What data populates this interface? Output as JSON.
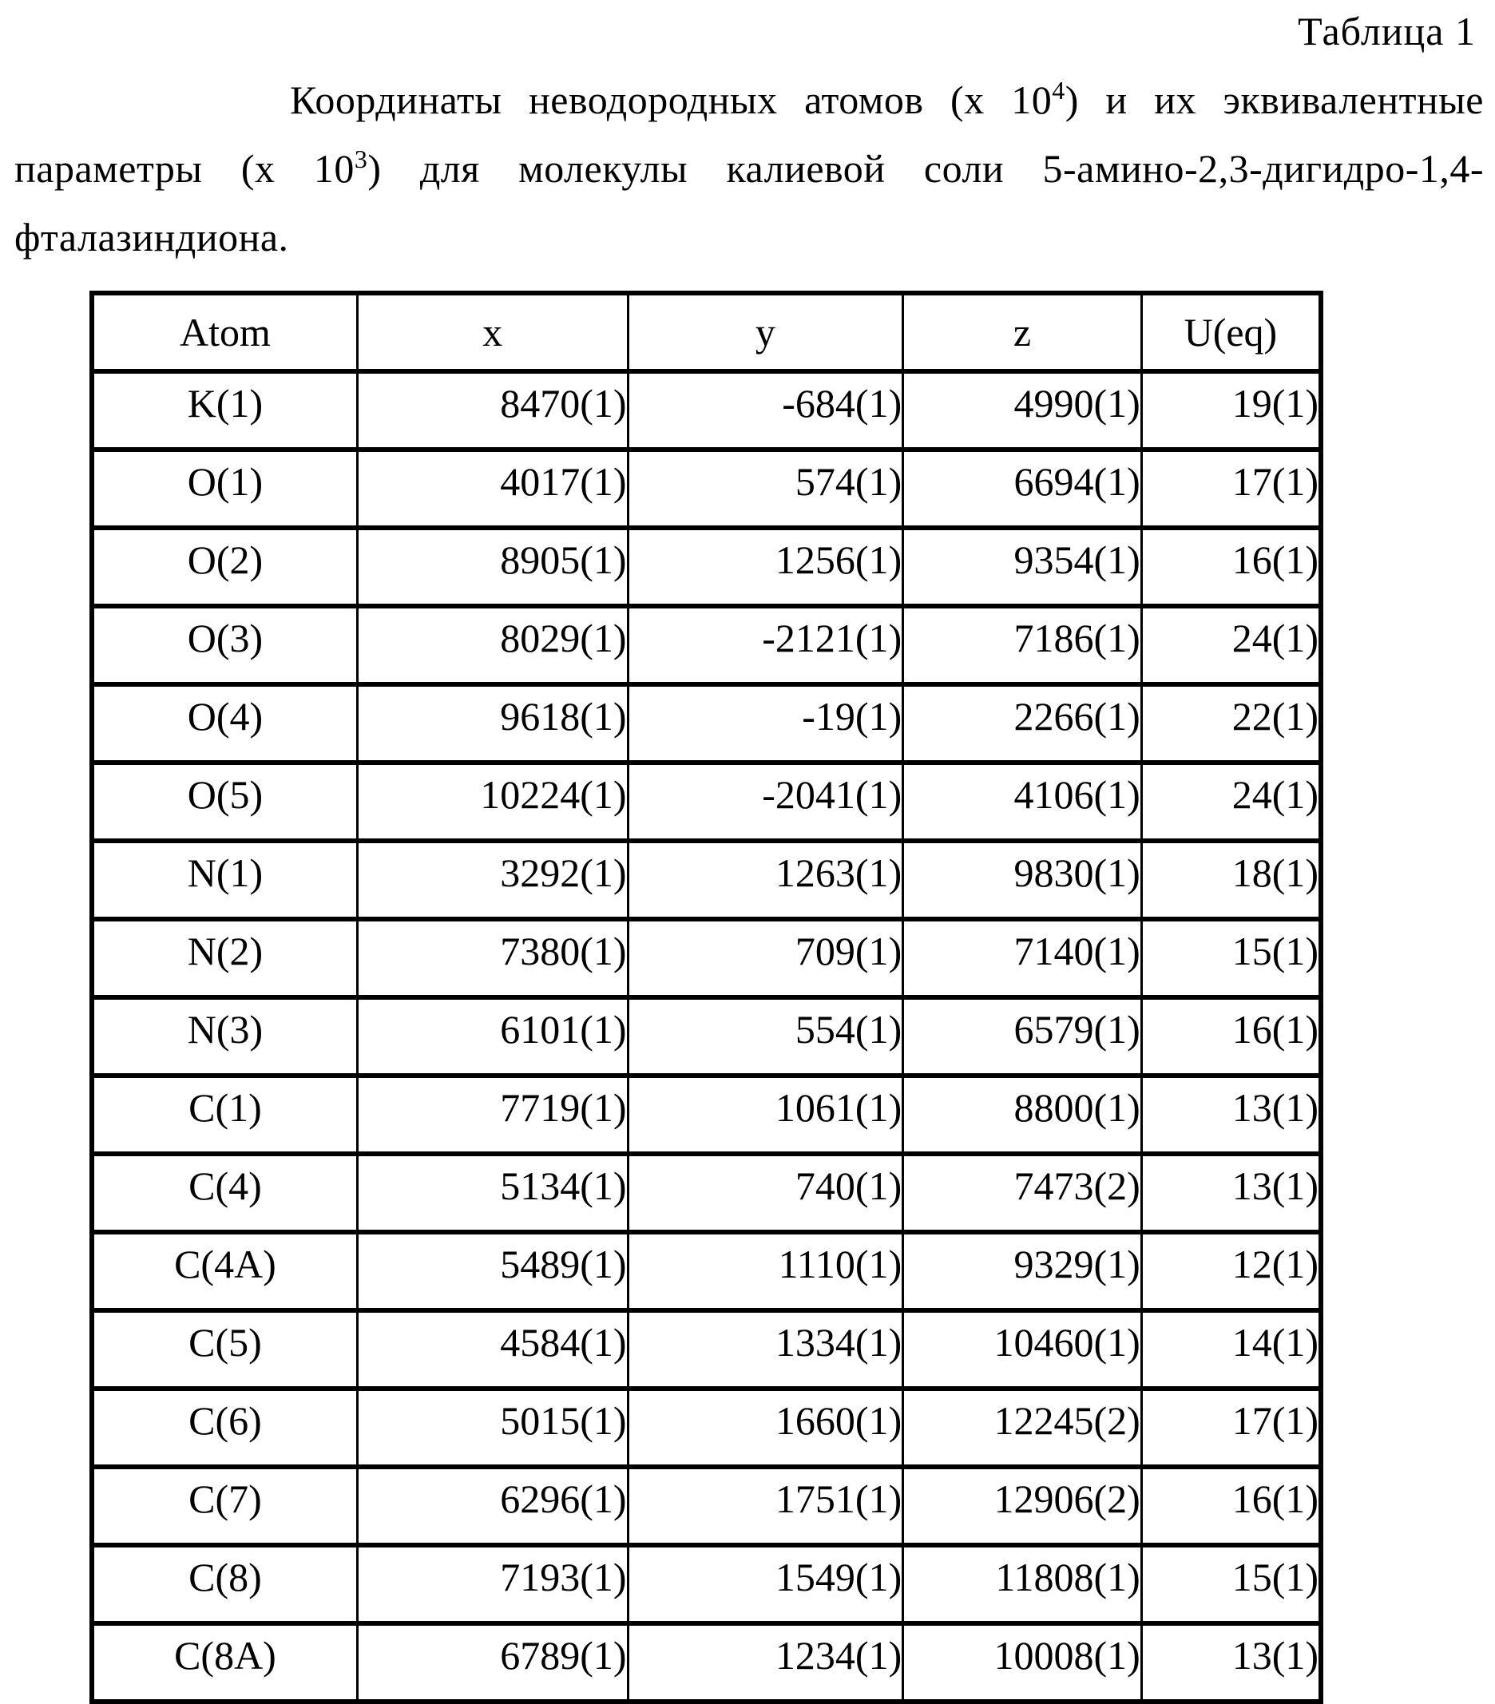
{
  "page": {
    "table_label": "Таблица 1",
    "caption": {
      "part1": "Координаты неводородных атомов (х 10",
      "sup1": "4",
      "part2": ") и их эквивалентные параметры (х 10",
      "sup2": "3",
      "part3": ") для молекулы калиевой соли 5-амино-2,3-дигидро-1,4-фталазиндиона."
    }
  },
  "table": {
    "headers": [
      "Atom",
      "x",
      "y",
      "z",
      "U(eq)"
    ],
    "rows": [
      {
        "atom": "K(1)",
        "x": "8470(1)",
        "y": "-684(1)",
        "z": "4990(1)",
        "ueq": "19(1)"
      },
      {
        "atom": "O(1)",
        "x": "4017(1)",
        "y": "574(1)",
        "z": "6694(1)",
        "ueq": "17(1)"
      },
      {
        "atom": "O(2)",
        "x": "8905(1)",
        "y": "1256(1)",
        "z": "9354(1)",
        "ueq": "16(1)"
      },
      {
        "atom": "O(3)",
        "x": "8029(1)",
        "y": "-2121(1)",
        "z": "7186(1)",
        "ueq": "24(1)"
      },
      {
        "atom": "O(4)",
        "x": "9618(1)",
        "y": "-19(1)",
        "z": "2266(1)",
        "ueq": "22(1)"
      },
      {
        "atom": "O(5)",
        "x": "10224(1)",
        "y": "-2041(1)",
        "z": "4106(1)",
        "ueq": "24(1)"
      },
      {
        "atom": "N(1)",
        "x": "3292(1)",
        "y": "1263(1)",
        "z": "9830(1)",
        "ueq": "18(1)"
      },
      {
        "atom": "N(2)",
        "x": "7380(1)",
        "y": "709(1)",
        "z": "7140(1)",
        "ueq": "15(1)"
      },
      {
        "atom": "N(3)",
        "x": "6101(1)",
        "y": "554(1)",
        "z": "6579(1)",
        "ueq": "16(1)"
      },
      {
        "atom": "C(1)",
        "x": "7719(1)",
        "y": "1061(1)",
        "z": "8800(1)",
        "ueq": "13(1)"
      },
      {
        "atom": "C(4)",
        "x": "5134(1)",
        "y": "740(1)",
        "z": "7473(2)",
        "ueq": "13(1)"
      },
      {
        "atom": "C(4A)",
        "x": "5489(1)",
        "y": "1110(1)",
        "z": "9329(1)",
        "ueq": "12(1)"
      },
      {
        "atom": "C(5)",
        "x": "4584(1)",
        "y": "1334(1)",
        "z": "10460(1)",
        "ueq": "14(1)"
      },
      {
        "atom": "C(6)",
        "x": "5015(1)",
        "y": "1660(1)",
        "z": "12245(2)",
        "ueq": "17(1)"
      },
      {
        "atom": "C(7)",
        "x": "6296(1)",
        "y": "1751(1)",
        "z": "12906(2)",
        "ueq": "16(1)"
      },
      {
        "atom": "C(8)",
        "x": "7193(1)",
        "y": "1549(1)",
        "z": "11808(1)",
        "ueq": "15(1)"
      },
      {
        "atom": "C(8A)",
        "x": "6789(1)",
        "y": "1234(1)",
        "z": "10008(1)",
        "ueq": "13(1)"
      }
    ]
  }
}
